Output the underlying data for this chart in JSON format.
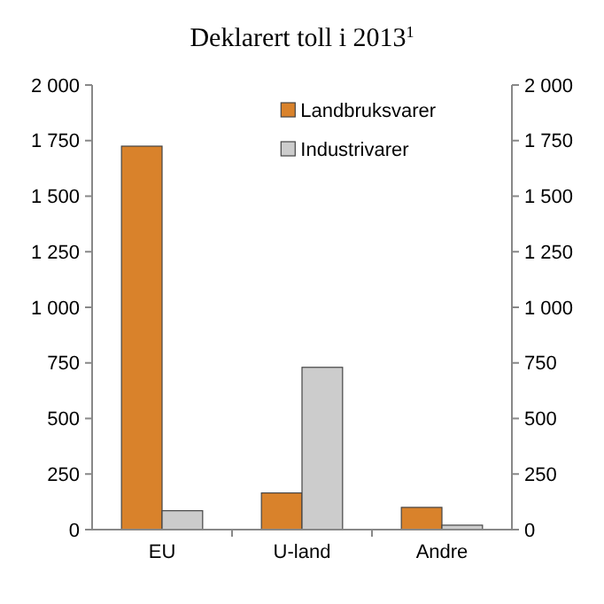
{
  "chart_data": {
    "type": "bar",
    "title": "Deklarert toll i 2013$^{1}$",
    "categories": [
      "EU",
      "U-land",
      "Andre"
    ],
    "series": [
      {
        "name": "Landbruksvarer",
        "color": "#d9822b",
        "values": [
          1725,
          165,
          100
        ]
      },
      {
        "name": "Industrivarer",
        "color": "#cccccc",
        "values": [
          85,
          730,
          20
        ]
      }
    ],
    "ylim": [
      0,
      2000
    ],
    "yticks": [
      0,
      250,
      500,
      750,
      {
        "value": 1000,
        "label": "1 000"
      },
      {
        "value": 1250,
        "label": "1 250"
      },
      {
        "value": 1500,
        "label": "1 500"
      },
      {
        "value": 1750,
        "label": "1 750"
      },
      {
        "value": 2000,
        "label": "2 000"
      }
    ],
    "y2lim": [
      0,
      2000
    ],
    "y2ticks": [
      0,
      250,
      500,
      750,
      {
        "value": 1000,
        "label": "1 000"
      },
      {
        "value": 1250,
        "label": "1 250"
      },
      {
        "value": 1500,
        "label": "1 500"
      },
      {
        "value": 1750,
        "label": "1 750"
      },
      {
        "value": 2000,
        "label": "2 000"
      }
    ],
    "grid": false,
    "legend": "top right"
  }
}
